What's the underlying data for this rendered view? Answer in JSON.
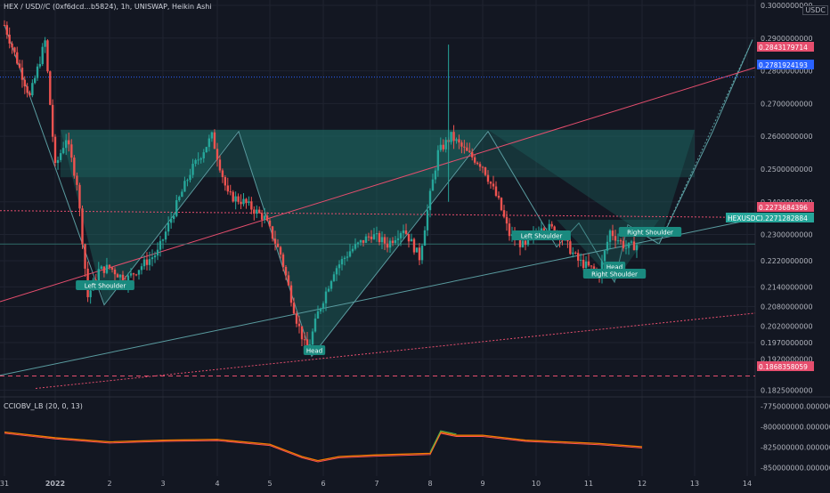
{
  "header": {
    "symbol_line": "HEX / USD//C (0xf6dcd...b5824), 1h, UNISWAP, Heikin Ashi",
    "currency": "USDC"
  },
  "indicator": {
    "label": "CCIOBV_LB (20, 0, 13)"
  },
  "colors": {
    "background": "#131722",
    "up": "#26a69a",
    "down": "#ef5350",
    "pattern_fill": "#1d6b63",
    "red_line": "#e64e6e",
    "teal_line": "#5a9ca0",
    "obv_red": "#ff5252",
    "obv_green": "#4caf50",
    "obv_orange": "#f57c00"
  },
  "chart_data": [
    {
      "type": "candlestick",
      "title": "HEX / USD//C (0xf6dcd...b5824), 1h, UNISWAP, Heikin Ashi",
      "x_ticks": [
        "31",
        "2022",
        "2",
        "3",
        "4",
        "5",
        "6",
        "7",
        "8",
        "9",
        "10",
        "11",
        "12",
        "13",
        "14"
      ],
      "y_ticks": [
        "0.3000000000",
        "0.2900000000",
        "0.2800000000",
        "0.2700000000",
        "0.2600000000",
        "0.2500000000",
        "0.2400000000",
        "0.2300000000",
        "0.2220000000",
        "0.2140000000",
        "0.2080000000",
        "0.2020000000",
        "0.1970000000",
        "0.1920000000",
        "0.1825000000"
      ],
      "y_range": [
        0.1815,
        0.3
      ],
      "grid": true,
      "price_labels": [
        {
          "text": "0.2843179714",
          "color": "#e64e6e"
        },
        {
          "text": "0.2781924193",
          "color": "#2962ff"
        },
        {
          "text": "0.2273684396",
          "color": "#e64e6e"
        },
        {
          "text": "0.2271282884",
          "color": "#26a69a"
        },
        {
          "text": "HEXUSDC",
          "color": "#26a69a"
        },
        {
          "text": "0.1868358059",
          "color": "#e64e6e"
        }
      ],
      "annotations": [
        "Left Shoulder",
        "Head",
        "Left Shoulder",
        "Head",
        "Right Shoulder",
        "Right Shoulder"
      ],
      "hs_pattern_1": {
        "neckline": 0.262,
        "left_shoulder_low": 0.2085,
        "head_low": 0.1928,
        "x_days": [
          1.5,
          3.7,
          5.7,
          8.1
        ]
      },
      "hs_pattern_2": {
        "neckline": 0.2345,
        "left_shoulder_low": 0.2255,
        "head_low": 0.2155,
        "right_shoulder_low": 0.2262
      },
      "target_line": 0.2843,
      "close": 0.2271282884
    },
    {
      "type": "line",
      "title": "CCIOBV_LB (20, 0, 13)",
      "y_ticks": [
        "-775000000.0000000000",
        "-800000000.0000000000",
        "-825000000.0000000000",
        "-850000000.0000000000"
      ],
      "y_range": [
        -855000000,
        -770000000
      ]
    }
  ]
}
